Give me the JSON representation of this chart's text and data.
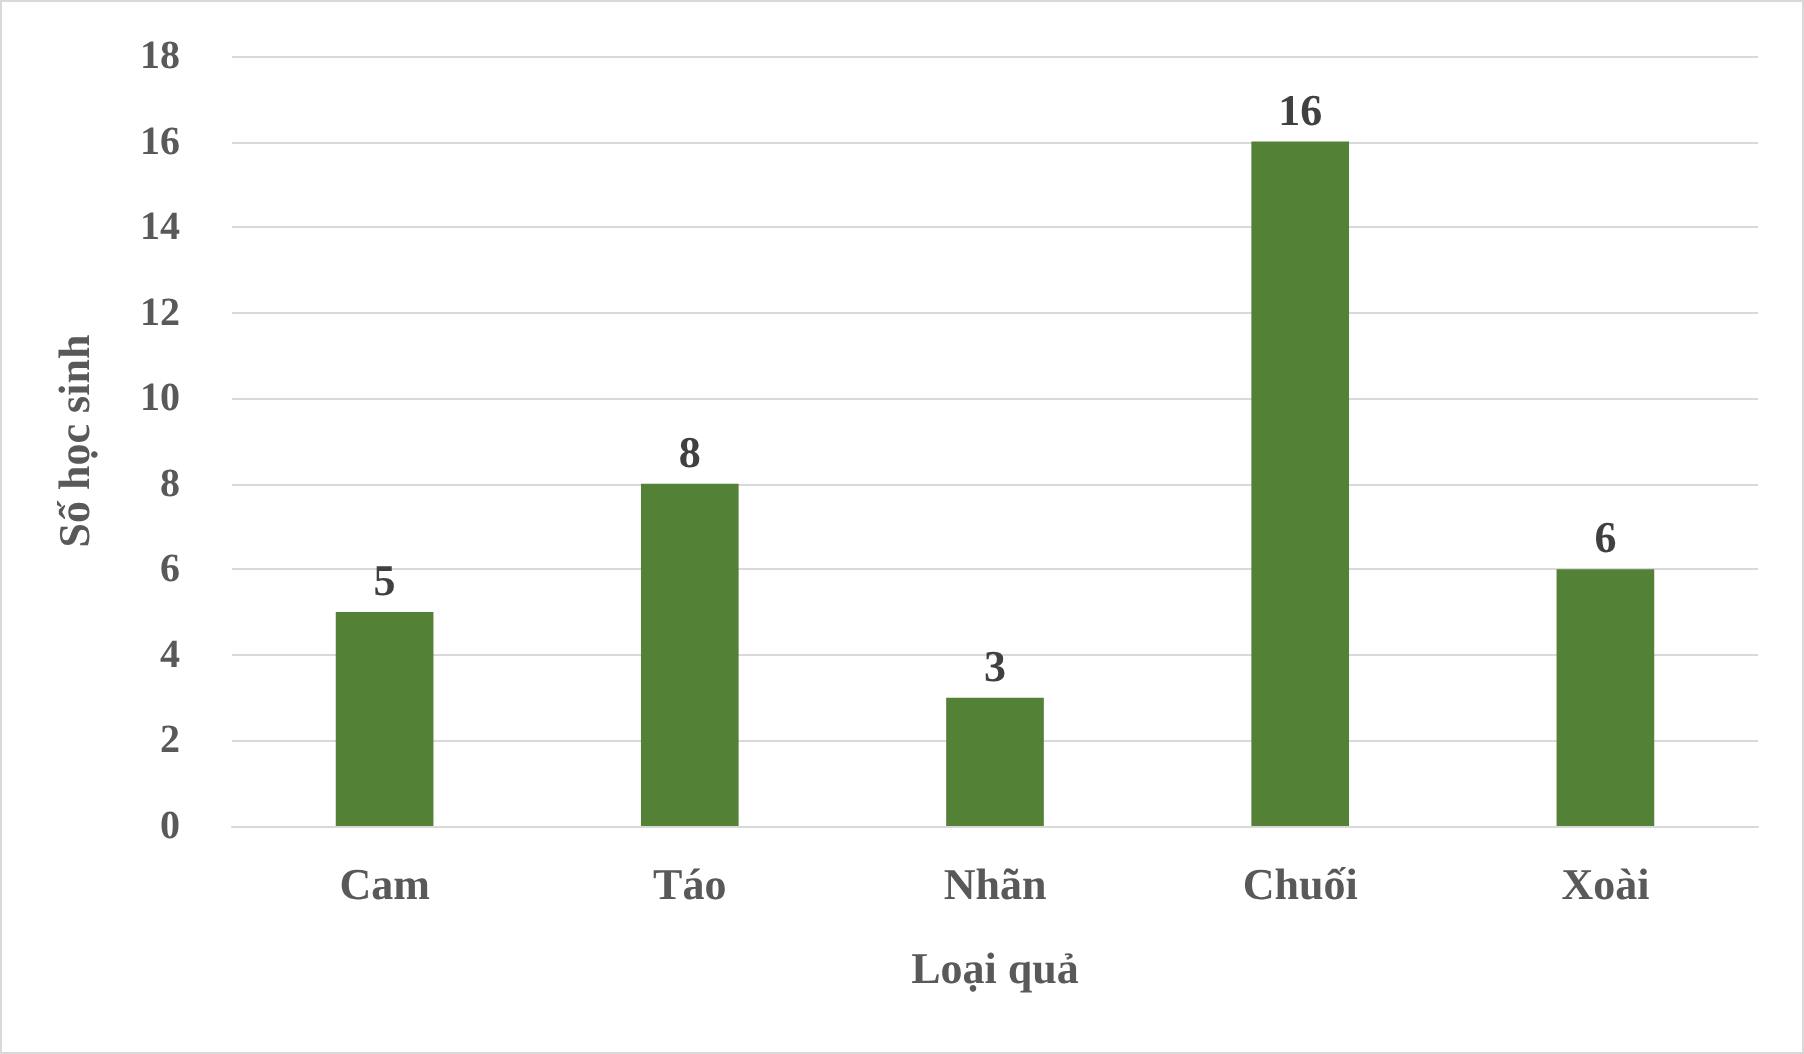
{
  "chart_data": {
    "type": "bar",
    "xlabel": "Loại quả",
    "ylabel": "Số học sinh",
    "categories": [
      "Cam",
      "Táo",
      "Nhãn",
      "Chuối",
      "Xoài"
    ],
    "values": [
      5,
      8,
      3,
      16,
      6
    ],
    "color": "#538135",
    "ylim": [
      0,
      18
    ],
    "yticks": [
      0,
      2,
      4,
      6,
      8,
      10,
      12,
      14,
      16,
      18
    ],
    "grid": "y",
    "data_labels": true
  }
}
